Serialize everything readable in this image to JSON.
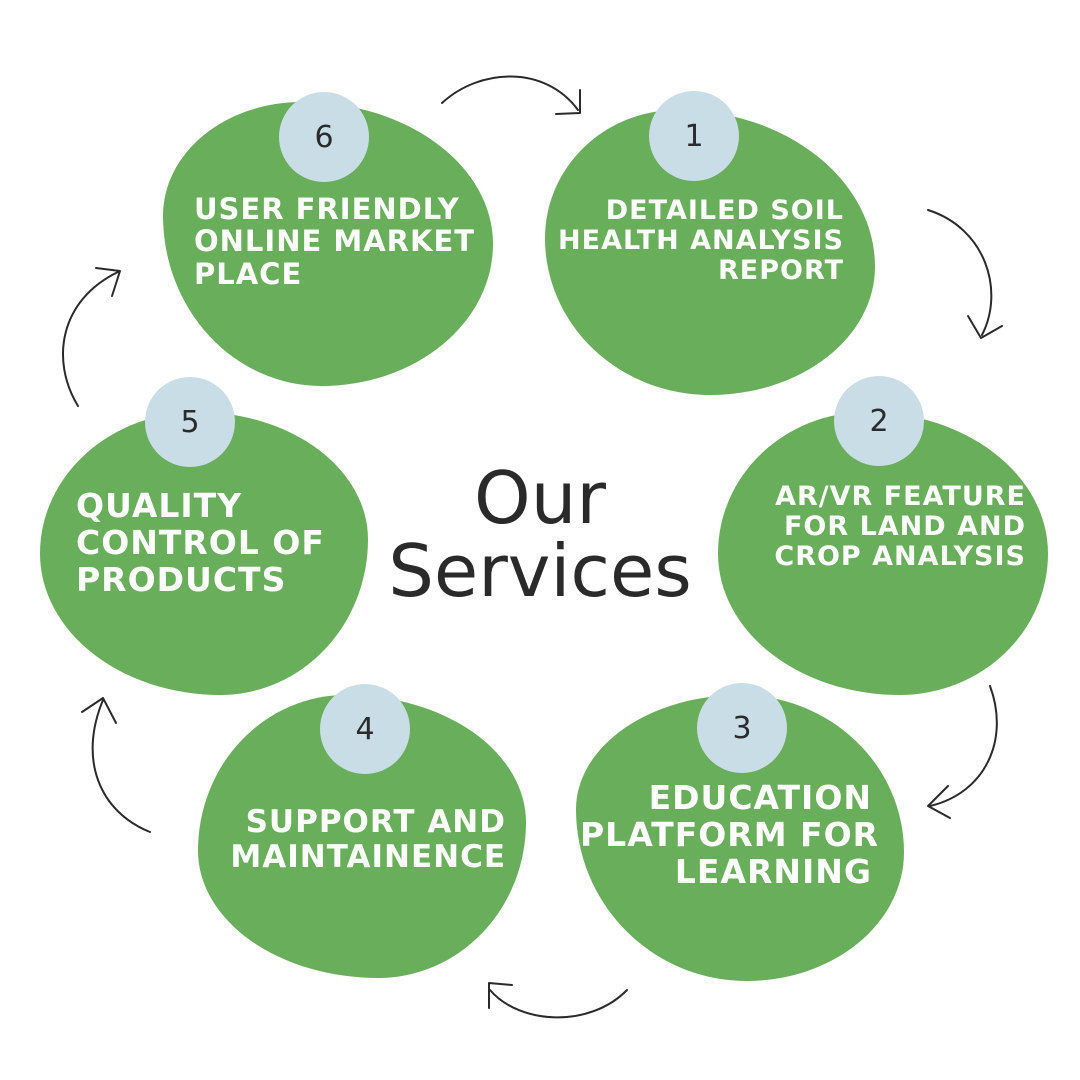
{
  "title": {
    "line1": "Our",
    "line2": "Services"
  },
  "colors": {
    "blob": "#69ae5b",
    "badge": "#c9dde7",
    "title": "#2a2a2a",
    "arrow": "#2a2a2a",
    "label": "#ffffff"
  },
  "services": [
    {
      "number": "1",
      "lines": [
        "Detailed Soil",
        "Health Analysis",
        "Report"
      ]
    },
    {
      "number": "2",
      "lines": [
        "AR/VR Feature",
        "for Land and",
        "Crop Analysis"
      ]
    },
    {
      "number": "3",
      "lines": [
        "Education",
        "Platform for",
        "Learning"
      ]
    },
    {
      "number": "4",
      "lines": [
        "Support and",
        "Maintainence"
      ]
    },
    {
      "number": "5",
      "lines": [
        "Quality",
        "Control of",
        "Products"
      ]
    },
    {
      "number": "6",
      "lines": [
        "User Friendly",
        "Online Market",
        "Place"
      ]
    }
  ]
}
